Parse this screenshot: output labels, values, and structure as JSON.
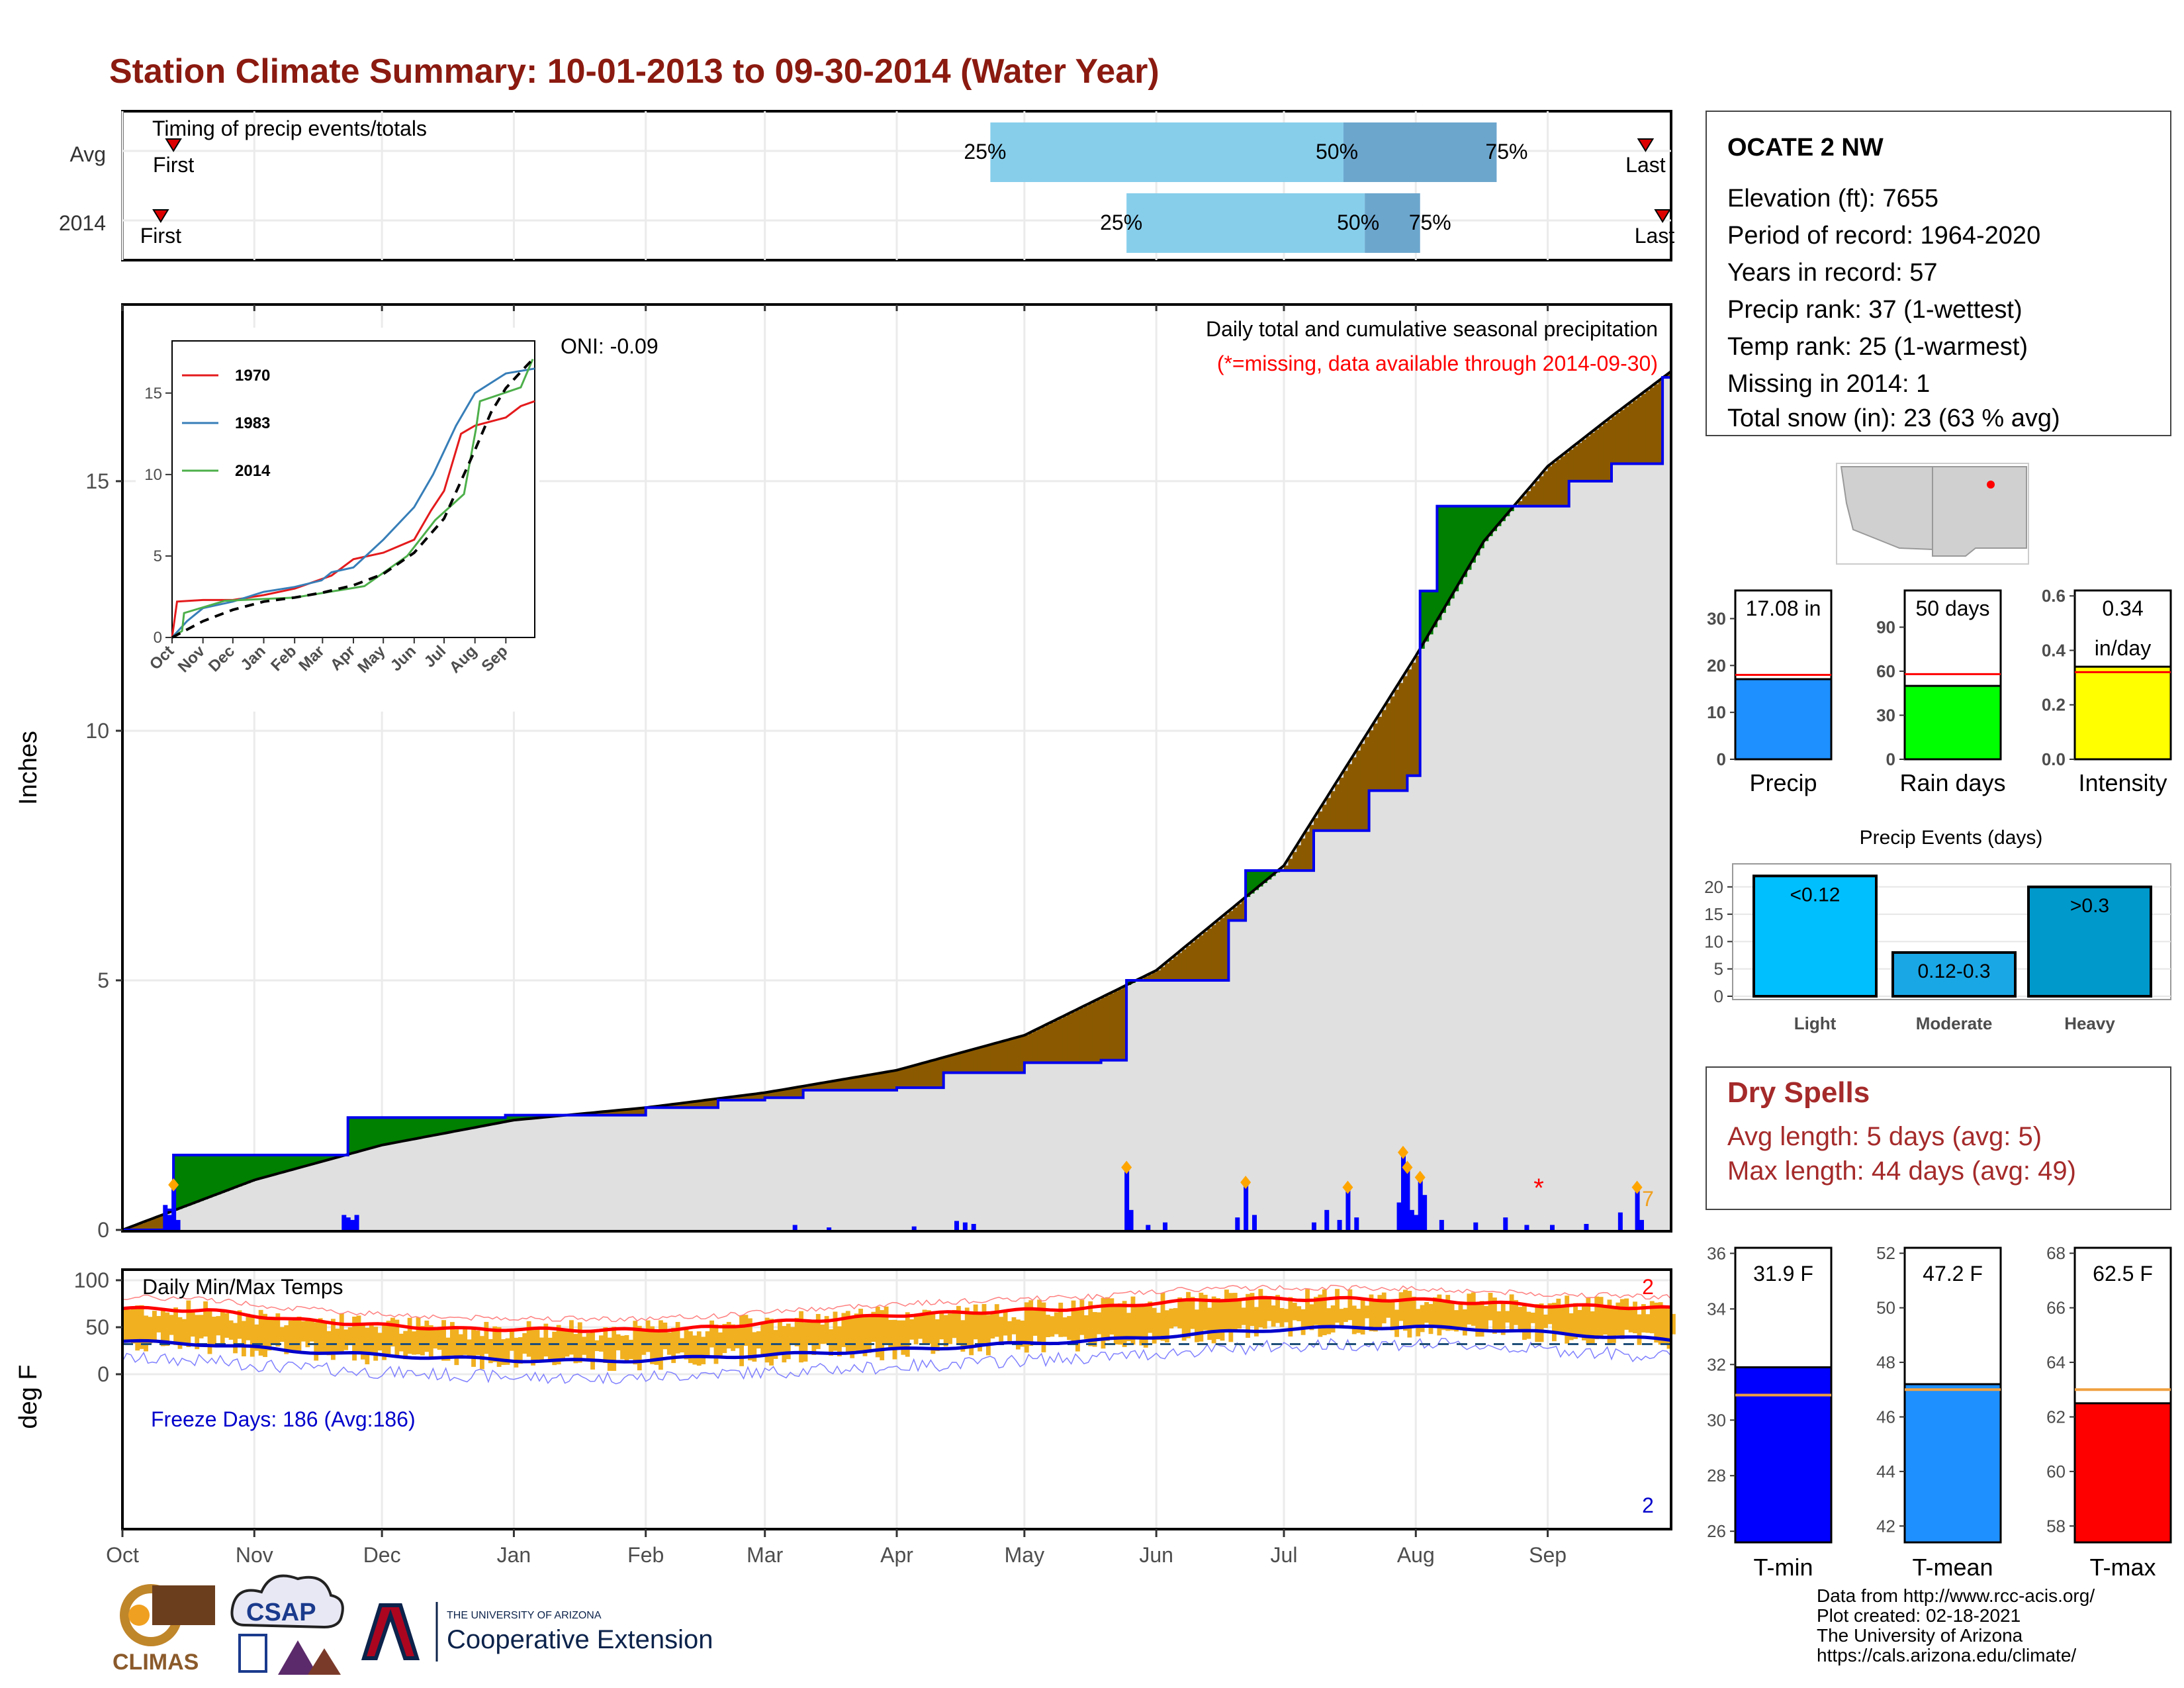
{
  "title": "Station Climate Summary: 10-01-2013 to 09-30-2014 (Water Year)",
  "colors": {
    "title": "#8B1A10",
    "light_blue": "#87CEEB",
    "mid_blue": "#6CA6CD",
    "green_surplus": "#008000",
    "brown_deficit": "#8B5A00",
    "grey_fill": "#E0E0E0",
    "precip_bar": "#0000FF",
    "temp_bar": "#F0B020",
    "tmax_line": "#FF0000",
    "tmin_line": "#0000CC"
  },
  "timing_panel": {
    "caption": "Timing of precip events/totals",
    "rows": [
      {
        "label": "Avg",
        "first_label": "First",
        "last_label": "Last",
        "first_day": 12,
        "last_day": 358,
        "q25_day": 204,
        "q50_day": 287,
        "q75_day": 323,
        "q25_label": "25%",
        "q50_label": "50%",
        "q75_label": "75%"
      },
      {
        "label": "2014",
        "first_label": "First",
        "last_label": "Last",
        "first_day": 9,
        "last_day": 362,
        "q25_day": 236,
        "q50_day": 292,
        "q75_day": 305,
        "q25_label": "25%",
        "q50_label": "50%",
        "q75_label": "75%"
      }
    ]
  },
  "months": [
    "Oct",
    "Nov",
    "Dec",
    "Jan",
    "Feb",
    "Mar",
    "Apr",
    "May",
    "Jun",
    "Jul",
    "Aug",
    "Sep"
  ],
  "month_start_days": [
    0,
    31,
    61,
    92,
    123,
    151,
    182,
    212,
    243,
    273,
    304,
    335
  ],
  "precip_panel": {
    "ylabel": "Inches",
    "yticks": [
      "0",
      "5",
      "10",
      "15"
    ],
    "header": "Daily total and cumulative seasonal precipitation",
    "missing_note": "(*=missing, data available through 2014-09-30)",
    "oni": "ONI: -0.09",
    "corner_count": "7",
    "missing_marker": "*"
  },
  "inset": {
    "yticks": [
      "0",
      "5",
      "10",
      "15"
    ],
    "legend": [
      {
        "name": "1970",
        "color": "#E41A1C"
      },
      {
        "name": "1983",
        "color": "#377EB8"
      },
      {
        "name": "2014",
        "color": "#4DAF4A"
      }
    ]
  },
  "temp_panel": {
    "ylabel": "deg F",
    "yticks": [
      "0",
      "50",
      "100"
    ],
    "caption": "Daily Min/Max Temps",
    "freeze_text": "Freeze Days: 186 (Avg:186)",
    "record_high_count": "2",
    "record_low_count": "2"
  },
  "station": {
    "name": "OCATE 2 NW",
    "lines": [
      "Elevation (ft): 7655",
      "Period of record: 1964-2020",
      "Years in record: 57",
      "Precip rank: 37 (1-wettest)",
      "Temp rank: 25 (1-warmest)",
      "Missing in 2014: 1",
      "Total snow (in): 23 (63 % avg)"
    ]
  },
  "summary_bars": [
    {
      "label": "Precip",
      "value_text": "17.08 in",
      "value": 17.08,
      "avg": 18.0,
      "ymax": 36,
      "yticks": [
        {
          "v": 0,
          "t": "0"
        },
        {
          "v": 10,
          "t": "10"
        },
        {
          "v": 20,
          "t": "20"
        },
        {
          "v": 30,
          "t": "30"
        }
      ],
      "color": "#1E90FF",
      "avg_color": "#FF0000"
    },
    {
      "label": "Rain days",
      "value_text": "50 days",
      "value": 50,
      "avg": 58,
      "ymax": 115,
      "yticks": [
        {
          "v": 0,
          "t": "0"
        },
        {
          "v": 30,
          "t": "30"
        },
        {
          "v": 60,
          "t": "60"
        },
        {
          "v": 90,
          "t": "90"
        }
      ],
      "color": "#00FF00",
      "avg_color": "#FF0000"
    },
    {
      "label": "Intensity",
      "value_text": "0.34",
      "value_text2": "in/day",
      "value": 0.34,
      "avg": 0.32,
      "ymax": 0.62,
      "yticks": [
        {
          "v": 0,
          "t": "0.0"
        },
        {
          "v": 0.2,
          "t": "0.2"
        },
        {
          "v": 0.4,
          "t": "0.4"
        },
        {
          "v": 0.6,
          "t": "0.6"
        }
      ],
      "color": "#FFFF00",
      "avg_color": "#FF0000"
    }
  ],
  "precip_events": {
    "title": "Precip Events (days)",
    "yticks": [
      "0",
      "5",
      "10",
      "15",
      "20"
    ],
    "bars": [
      {
        "category": "Light",
        "inner": "<0.12",
        "value": 22,
        "color": "#00BFFF"
      },
      {
        "category": "Moderate",
        "inner": "0.12-0.3",
        "value": 8,
        "color": "#1AA7E6"
      },
      {
        "category": "Heavy",
        "inner": ">0.3",
        "value": 20,
        "color": "#0099CC"
      }
    ]
  },
  "dry_spells": {
    "title": "Dry Spells",
    "lines": [
      "Avg length: 5 days (avg: 5)",
      "Max length: 44 days (avg: 49)"
    ]
  },
  "temp_bars": [
    {
      "label": "T-min",
      "value_text": "31.9 F",
      "value": 31.9,
      "avg": 30.9,
      "ymin": 25.6,
      "ymax": 36.2,
      "yticks": [
        "26",
        "28",
        "30",
        "32",
        "34",
        "36"
      ],
      "color": "#0000FF"
    },
    {
      "label": "T-mean",
      "value_text": "47.2 F",
      "value": 47.2,
      "avg": 47.0,
      "ymin": 41.4,
      "ymax": 52.2,
      "yticks": [
        "42",
        "44",
        "46",
        "48",
        "50",
        "52"
      ],
      "color": "#1E90FF"
    },
    {
      "label": "T-max",
      "value_text": "62.5 F",
      "value": 62.5,
      "avg": 63.0,
      "ymin": 57.4,
      "ymax": 68.2,
      "yticks": [
        "58",
        "60",
        "62",
        "64",
        "66",
        "68"
      ],
      "color": "#FF0000"
    }
  ],
  "footer": {
    "lines": [
      "Data from http://www.rcc-acis.org/",
      "Plot created: 02-18-2021",
      "The University of Arizona",
      "https://cals.arizona.edu/climate/"
    ],
    "logo_climas": "CLIMAS",
    "logo_csap": "CSAP",
    "ua_small": "THE UNIVERSITY OF ARIZONA",
    "ua_big": "Cooperative Extension"
  },
  "chart_data": {
    "type": "area",
    "title": "Station Climate Summary: 10-01-2013 to 09-30-2014 (Water Year)",
    "ylabel": "Inches",
    "ylim": [
      0,
      18.5
    ],
    "cumulative_2014": [
      [
        0,
        0
      ],
      [
        10,
        0.4
      ],
      [
        12,
        1.5
      ],
      [
        31,
        1.5
      ],
      [
        50,
        1.5
      ],
      [
        53,
        2.25
      ],
      [
        90,
        2.3
      ],
      [
        123,
        2.45
      ],
      [
        140,
        2.6
      ],
      [
        151,
        2.65
      ],
      [
        160,
        2.8
      ],
      [
        182,
        2.85
      ],
      [
        193,
        3.15
      ],
      [
        212,
        3.35
      ],
      [
        230,
        3.4
      ],
      [
        236,
        5.0
      ],
      [
        260,
        6.2
      ],
      [
        264,
        7.2
      ],
      [
        280,
        8.0
      ],
      [
        293,
        8.8
      ],
      [
        302,
        9.1
      ],
      [
        305,
        12.8
      ],
      [
        309,
        14.5
      ],
      [
        340,
        15.0
      ],
      [
        350,
        15.35
      ],
      [
        362,
        17.08
      ],
      [
        364,
        17.08
      ]
    ],
    "cumulative_avg": [
      [
        0,
        0
      ],
      [
        31,
        1.0
      ],
      [
        61,
        1.7
      ],
      [
        92,
        2.2
      ],
      [
        123,
        2.45
      ],
      [
        151,
        2.75
      ],
      [
        182,
        3.2
      ],
      [
        212,
        3.9
      ],
      [
        243,
        5.2
      ],
      [
        273,
        7.3
      ],
      [
        304,
        11.5
      ],
      [
        320,
        13.8
      ],
      [
        335,
        15.3
      ],
      [
        350,
        16.3
      ],
      [
        364,
        17.2
      ]
    ],
    "daily_precip": [
      [
        10,
        0.5
      ],
      [
        11,
        0.3
      ],
      [
        12,
        0.85
      ],
      [
        13,
        0.2
      ],
      [
        52,
        0.3
      ],
      [
        53,
        0.25
      ],
      [
        54,
        0.2
      ],
      [
        55,
        0.3
      ],
      [
        158,
        0.1
      ],
      [
        166,
        0.05
      ],
      [
        186,
        0.07
      ],
      [
        196,
        0.18
      ],
      [
        198,
        0.15
      ],
      [
        200,
        0.12
      ],
      [
        236,
        1.2
      ],
      [
        237,
        0.4
      ],
      [
        241,
        0.1
      ],
      [
        245,
        0.15
      ],
      [
        262,
        0.25
      ],
      [
        264,
        0.9
      ],
      [
        266,
        0.3
      ],
      [
        280,
        0.15
      ],
      [
        283,
        0.4
      ],
      [
        286,
        0.2
      ],
      [
        288,
        0.8
      ],
      [
        290,
        0.25
      ],
      [
        300,
        0.55
      ],
      [
        301,
        1.5
      ],
      [
        302,
        1.2
      ],
      [
        303,
        0.4
      ],
      [
        304,
        0.3
      ],
      [
        305,
        1.0
      ],
      [
        306,
        0.7
      ],
      [
        310,
        0.2
      ],
      [
        318,
        0.15
      ],
      [
        325,
        0.25
      ],
      [
        330,
        0.1
      ],
      [
        336,
        0.1
      ],
      [
        344,
        0.12
      ],
      [
        352,
        0.35
      ],
      [
        356,
        0.8
      ],
      [
        357,
        0.2
      ]
    ],
    "tmax_smooth": [
      [
        0,
        70
      ],
      [
        20,
        68
      ],
      [
        40,
        58
      ],
      [
        61,
        52
      ],
      [
        80,
        48
      ],
      [
        92,
        48
      ],
      [
        110,
        47
      ],
      [
        123,
        47
      ],
      [
        140,
        50
      ],
      [
        151,
        55
      ],
      [
        165,
        58
      ],
      [
        182,
        63
      ],
      [
        200,
        66
      ],
      [
        212,
        68
      ],
      [
        230,
        71
      ],
      [
        243,
        76
      ],
      [
        260,
        80
      ],
      [
        273,
        80
      ],
      [
        290,
        80
      ],
      [
        304,
        79
      ],
      [
        320,
        76
      ],
      [
        335,
        73
      ],
      [
        350,
        72
      ],
      [
        364,
        70
      ]
    ],
    "tmin_smooth": [
      [
        0,
        35
      ],
      [
        20,
        32
      ],
      [
        40,
        25
      ],
      [
        61,
        20
      ],
      [
        80,
        17
      ],
      [
        92,
        15
      ],
      [
        110,
        14
      ],
      [
        123,
        15
      ],
      [
        140,
        19
      ],
      [
        151,
        20
      ],
      [
        165,
        23
      ],
      [
        182,
        26
      ],
      [
        200,
        30
      ],
      [
        212,
        33
      ],
      [
        230,
        36
      ],
      [
        243,
        40
      ],
      [
        260,
        45
      ],
      [
        273,
        48
      ],
      [
        290,
        50
      ],
      [
        304,
        50
      ],
      [
        320,
        48
      ],
      [
        335,
        44
      ],
      [
        350,
        40
      ],
      [
        364,
        36
      ]
    ],
    "inset_series": [
      {
        "name": "1970",
        "values": [
          [
            0,
            0
          ],
          [
            5,
            2.2
          ],
          [
            31,
            2.3
          ],
          [
            61,
            2.3
          ],
          [
            92,
            2.6
          ],
          [
            123,
            3.0
          ],
          [
            160,
            3.8
          ],
          [
            182,
            4.8
          ],
          [
            212,
            5.2
          ],
          [
            243,
            6.0
          ],
          [
            260,
            7.8
          ],
          [
            273,
            9.0
          ],
          [
            290,
            12.5
          ],
          [
            304,
            13.0
          ],
          [
            335,
            13.5
          ],
          [
            350,
            14.2
          ],
          [
            364,
            14.5
          ]
        ]
      },
      {
        "name": "1983",
        "values": [
          [
            0,
            0
          ],
          [
            15,
            1.0
          ],
          [
            31,
            1.8
          ],
          [
            61,
            2.2
          ],
          [
            92,
            2.8
          ],
          [
            123,
            3.1
          ],
          [
            150,
            3.5
          ],
          [
            160,
            4.0
          ],
          [
            182,
            4.3
          ],
          [
            212,
            6.0
          ],
          [
            243,
            8.0
          ],
          [
            262,
            10.0
          ],
          [
            285,
            13.0
          ],
          [
            304,
            15.0
          ],
          [
            335,
            16.2
          ],
          [
            364,
            16.5
          ]
        ]
      },
      {
        "name": "2014",
        "values": [
          [
            0,
            0
          ],
          [
            10,
            0.4
          ],
          [
            12,
            1.5
          ],
          [
            53,
            2.25
          ],
          [
            123,
            2.45
          ],
          [
            193,
            3.15
          ],
          [
            236,
            5.0
          ],
          [
            264,
            7.2
          ],
          [
            293,
            8.8
          ],
          [
            305,
            12.8
          ],
          [
            309,
            14.5
          ],
          [
            350,
            15.35
          ],
          [
            362,
            17.08
          ]
        ]
      }
    ],
    "inset_avg": [
      [
        0,
        0
      ],
      [
        31,
        1.0
      ],
      [
        61,
        1.7
      ],
      [
        92,
        2.2
      ],
      [
        123,
        2.45
      ],
      [
        151,
        2.75
      ],
      [
        182,
        3.2
      ],
      [
        212,
        3.9
      ],
      [
        243,
        5.2
      ],
      [
        273,
        7.3
      ],
      [
        304,
        11.5
      ],
      [
        320,
        13.8
      ],
      [
        335,
        15.3
      ],
      [
        350,
        16.3
      ],
      [
        364,
        17.2
      ]
    ]
  }
}
